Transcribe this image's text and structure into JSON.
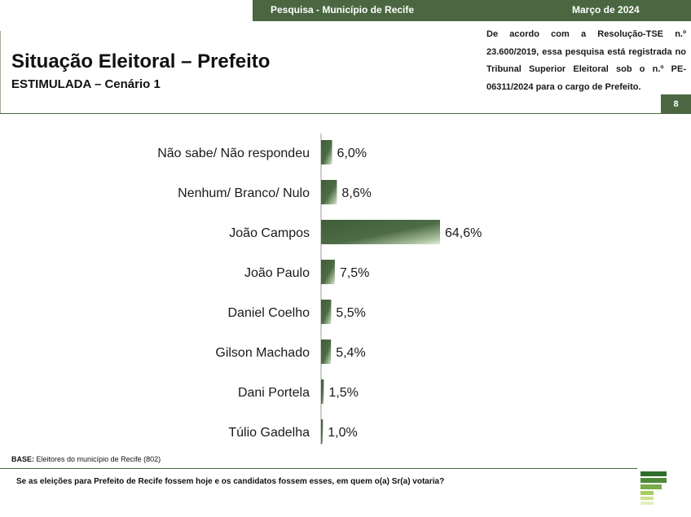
{
  "header": {
    "survey_label": "Pesquisa - Município de Recife",
    "date": "Março de 2024",
    "legal_text": "De acordo com a Resolução-TSE n.º 23.600/2019, essa pesquisa está registrada no Tribunal Superior Eleitoral sob o n.º PE-06311/2024 para o cargo de Prefeito.",
    "page_number": "8"
  },
  "title": "Situação Eleitoral – Prefeito",
  "subtitle": "ESTIMULADA – Cenário 1",
  "footer": {
    "base_label": "BASE:",
    "base_text": "Eleitores do município de Recife (802)",
    "question": "Se as eleições para Prefeito de Recife fossem hoje e os candidatos fossem esses, em quem o(a) Sr(a) votaria?"
  },
  "colors": {
    "brand": "#4a6741",
    "bar_dark": "#3f5e38",
    "bar_light": "#dfe9d6"
  },
  "chart_data": {
    "type": "bar",
    "orientation": "horizontal",
    "categories": [
      "Não sabe/ Não respondeu",
      "Nenhum/ Branco/ Nulo",
      "João Campos",
      "João Paulo",
      "Daniel Coelho",
      "Gilson Machado",
      "Dani Portela",
      "Túlio Gadelha"
    ],
    "values": [
      6.0,
      8.6,
      64.6,
      7.5,
      5.5,
      5.4,
      1.5,
      1.0
    ],
    "value_labels": [
      "6,0%",
      "8,6%",
      "64,6%",
      "7,5%",
      "5,5%",
      "5,4%",
      "1,5%",
      "1,0%"
    ],
    "unit": "%",
    "xlim": [
      0,
      100
    ],
    "grid": false
  }
}
